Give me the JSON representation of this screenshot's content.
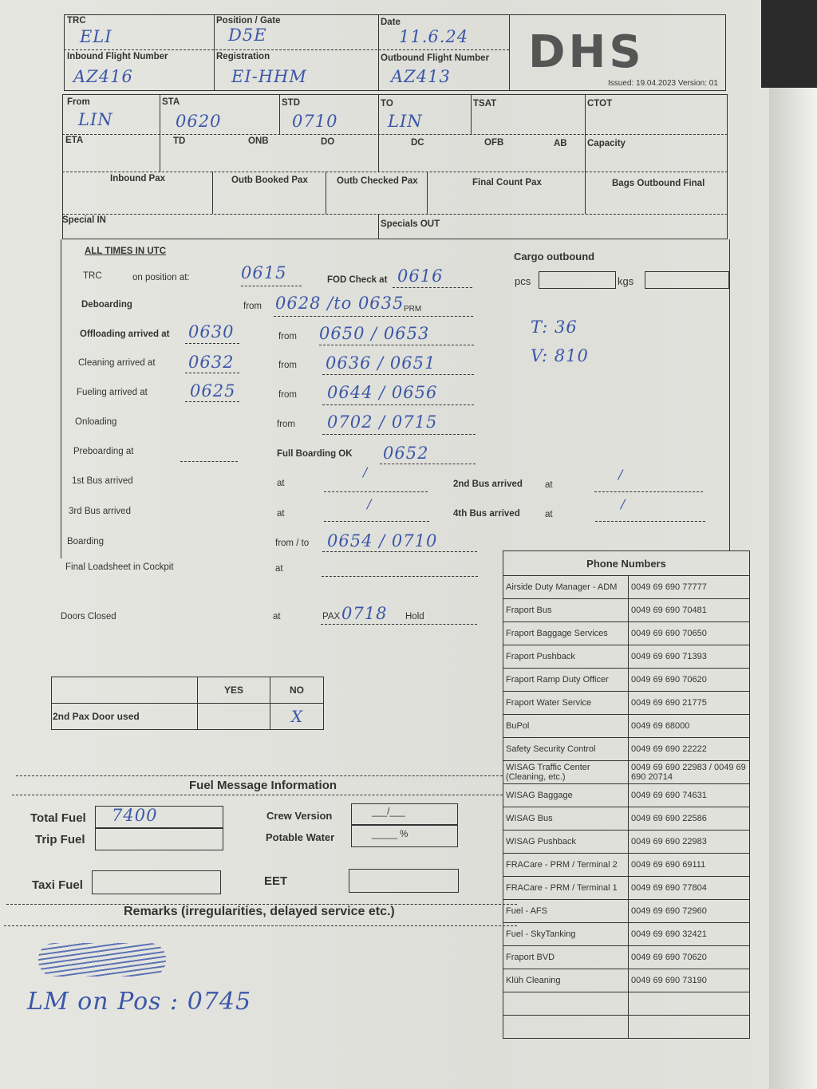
{
  "header": {
    "trc_label": "TRC",
    "trc_value": "ELI",
    "position_label": "Position / Gate",
    "position_value": "D5E",
    "date_label": "Date",
    "date_value": "11.6.24",
    "inbound_label": "Inbound Flight Number",
    "inbound_value": "AZ416",
    "registration_label": "Registration",
    "registration_value": "EI-HHM",
    "outbound_label": "Outbound Flight Number",
    "outbound_value": "AZ413",
    "logo": "DHS",
    "issued": "Issued: 19.04.2023 Version: 01"
  },
  "flight": {
    "from_label": "From",
    "from_value": "LIN",
    "sta_label": "STA",
    "sta_value": "0620",
    "std_label": "STD",
    "std_value": "0710",
    "to_label": "TO",
    "to_value": "LIN",
    "tsat_label": "TSAT",
    "ctot_label": "CTOT",
    "eta_label": "ETA",
    "td_label": "TD",
    "onb_label": "ONB",
    "do_label": "DO",
    "dc_label": "DC",
    "ofb_label": "OFB",
    "ab_label": "AB",
    "capacity_label": "Capacity",
    "inbound_pax": "Inbound Pax",
    "outb_booked": "Outb Booked Pax",
    "outb_checked": "Outb Checked Pax",
    "final_count": "Final Count Pax",
    "bags_final": "Bags Outbound Final",
    "special_in": "Special IN",
    "specials_out": "Specials OUT"
  },
  "times": {
    "all_times": "ALL TIMES IN UTC",
    "trc": "TRC",
    "on_position": "on position at:",
    "on_position_value": "0615",
    "fod": "FOD Check at",
    "fod_value": "0616",
    "cargo": "Cargo outbound",
    "pcs": "pcs",
    "kgs": "kgs",
    "deboarding": "Deboarding",
    "from": "from",
    "deb_value": "0628 /to 0635",
    "prm": "PRM",
    "offloading": "Offloading arrived at",
    "offloading_value": "0630",
    "offloading_range": "0650  / 0653",
    "cleaning": "Cleaning arrived at",
    "cleaning_value": "0632",
    "cleaning_range": "0636  / 0651",
    "fueling": "Fueling arrived at",
    "fueling_value": "0625",
    "fueling_range": "0644  / 0656",
    "onloading": "Onloading",
    "onloading_range": "0702  / 0715",
    "note_t": "T: 36",
    "note_v": "V: 810",
    "preboarding": "Preboarding at",
    "full_boarding": "Full Boarding OK",
    "full_boarding_value": "0652",
    "bus1": "1st Bus arrived",
    "bus2": "2nd Bus arrived",
    "bus3": "3rd Bus arrived",
    "bus4": "4th Bus arrived",
    "at": "at",
    "bus_mark": "/",
    "boarding": "Boarding",
    "from_to": "from / to",
    "boarding_range": "0654  / 0710",
    "loadsheet": "Final Loadsheet in Cockpit",
    "doors": "Doors Closed",
    "pax": "PAX",
    "doors_value": "0718",
    "hold": "Hold"
  },
  "door_table": {
    "yes": "YES",
    "no": "NO",
    "row": "2nd Pax Door used",
    "no_mark": "X"
  },
  "fuel": {
    "title": "Fuel Message Information",
    "total": "Total Fuel",
    "total_value": "7400",
    "trip": "Trip Fuel",
    "taxi": "Taxi Fuel",
    "crew": "Crew Version",
    "crew_value": "___/___",
    "water": "Potable Water",
    "water_value": "_____ %",
    "eet": "EET"
  },
  "remarks": {
    "title": "Remarks (irregularities, delayed service etc.)",
    "note": "LM on Pos : 0745"
  },
  "phone": {
    "title": "Phone Numbers",
    "rows": [
      {
        "name": "Airside Duty Manager - ADM",
        "number": "0049 69 690 77777"
      },
      {
        "name": "Fraport Bus",
        "number": "0049 69 690 70481"
      },
      {
        "name": "Fraport Baggage Services",
        "number": "0049 69 690 70650"
      },
      {
        "name": "Fraport Pushback",
        "number": "0049 69 690 71393"
      },
      {
        "name": "Fraport Ramp Duty Officer",
        "number": "0049 69 690 70620"
      },
      {
        "name": "Fraport Water Service",
        "number": "0049 69 690 21775"
      },
      {
        "name": "BuPol",
        "number": "0049 69 68000"
      },
      {
        "name": "Safety Security Control",
        "number": "0049 69 690 22222"
      },
      {
        "name": "WISAG Traffic Center (Cleaning, etc.)",
        "number": "0049 69 690 22983 / 0049 69 690 20714"
      },
      {
        "name": "WISAG Baggage",
        "number": "0049 69 690 74631"
      },
      {
        "name": "WISAG Bus",
        "number": "0049 69 690 22586"
      },
      {
        "name": "WISAG Pushback",
        "number": "0049 69 690 22983"
      },
      {
        "name": "FRACare - PRM / Terminal 2",
        "number": "0049 69 690 69111"
      },
      {
        "name": "FRACare - PRM / Terminal 1",
        "number": "0049 69 690 77804"
      },
      {
        "name": "Fuel - AFS",
        "number": "0049 69 690 72960"
      },
      {
        "name": "Fuel - SkyTanking",
        "number": "0049 69 690 32421"
      },
      {
        "name": "Fraport BVD",
        "number": "0049 69 690 70620"
      },
      {
        "name": "Klüh Cleaning",
        "number": "0049 69 690 73190"
      },
      {
        "name": "",
        "number": ""
      },
      {
        "name": "",
        "number": ""
      }
    ]
  },
  "colors": {
    "ink": "#3b57a8",
    "paper": "#e3e3de",
    "print": "#333333"
  }
}
